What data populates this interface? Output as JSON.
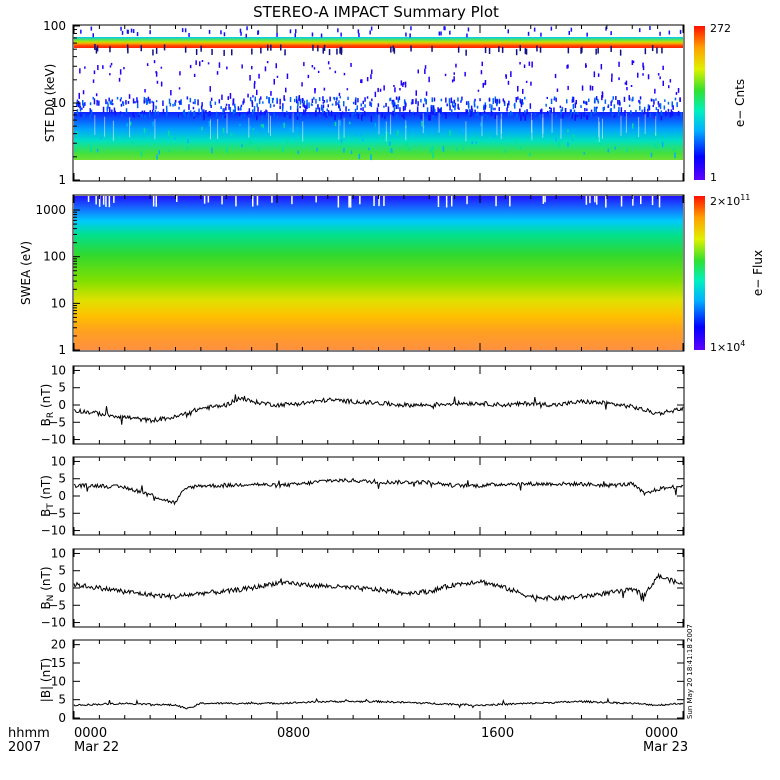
{
  "title": "STEREO-A IMPACT Summary Plot",
  "footer": {
    "time_label": "hhmm",
    "year_label": "2007",
    "stamp": "Sun May 20 18:41:18 2007"
  },
  "chart_data": [
    {
      "type": "heatmap",
      "name": "STE D0 spectrogram",
      "ylabel": "STE D0 (keV)",
      "yscale": "log",
      "ylim": [
        1,
        100
      ],
      "yticks": [
        1,
        10,
        100
      ],
      "ytick_labels": [
        "1",
        "10",
        "100"
      ],
      "colorbar": {
        "label": "e− Cnts",
        "min_label": "1",
        "max_label": "272",
        "min": 1,
        "max": 272
      },
      "description": "continuous band 2-6 keV, bright band near 55-70 keV, sparse points above"
    },
    {
      "type": "heatmap",
      "name": "SWEA spectrogram",
      "ylabel": "SWEA (eV)",
      "yscale": "log",
      "ylim": [
        1,
        2000
      ],
      "yticks": [
        1,
        10,
        100,
        1000
      ],
      "ytick_labels": [
        "1",
        "10",
        "100",
        "1000"
      ],
      "colorbar": {
        "label": "e− Flux",
        "min_label": "1×10",
        "min_exp": "4",
        "max_label": "2×10",
        "max_exp": "11",
        "min": 10000,
        "max": 200000000000
      }
    },
    {
      "type": "line",
      "ylabel_main": "B",
      "ylabel_sub": "R",
      "ylabel_unit": " (nT)",
      "ylim": [
        -11,
        11
      ],
      "yticks": [
        -10,
        -5,
        0,
        5,
        10
      ],
      "ytick_labels": [
        "−10",
        "−5",
        "0",
        "5",
        "10"
      ],
      "series": [
        {
          "x": [
            0,
            1,
            2,
            3,
            4,
            5,
            6,
            6.5,
            7,
            8,
            9,
            10,
            11,
            12,
            13,
            14,
            15,
            16,
            17,
            18,
            19,
            20,
            21,
            22,
            23,
            24
          ],
          "y": [
            -1.5,
            -2.5,
            -3.5,
            -4.5,
            -3.5,
            -1.0,
            0.0,
            2.0,
            1.0,
            0.0,
            0.5,
            1.5,
            1.0,
            0.5,
            0.0,
            0.0,
            0.5,
            0.5,
            0.0,
            0.5,
            0.0,
            1.0,
            0.5,
            -0.5,
            -2.5,
            -1.0
          ]
        }
      ]
    },
    {
      "type": "line",
      "ylabel_main": "B",
      "ylabel_sub": "T",
      "ylabel_unit": " (nT)",
      "ylim": [
        -11,
        11
      ],
      "yticks": [
        -10,
        -5,
        0,
        5,
        10
      ],
      "ytick_labels": [
        "−10",
        "−5",
        "0",
        "5",
        "10"
      ],
      "series": [
        {
          "x": [
            0,
            1,
            2,
            3,
            3.5,
            4,
            4.2,
            4.5,
            5,
            6,
            7,
            8,
            9,
            10,
            11,
            12,
            13,
            14,
            15,
            16,
            17,
            18,
            19,
            20,
            21,
            22,
            22.5,
            23,
            24
          ],
          "y": [
            3.0,
            3.0,
            2.5,
            0.5,
            -1.0,
            -2.0,
            0.5,
            2.5,
            3.0,
            3.0,
            3.5,
            3.0,
            3.5,
            4.5,
            4.5,
            4.0,
            4.0,
            4.0,
            3.0,
            3.0,
            3.5,
            3.5,
            3.5,
            3.5,
            3.0,
            3.5,
            0.5,
            2.0,
            3.0
          ]
        }
      ]
    },
    {
      "type": "line",
      "ylabel_main": "B",
      "ylabel_sub": "N",
      "ylabel_unit": " (nT)",
      "ylim": [
        -11,
        11
      ],
      "yticks": [
        -10,
        -5,
        0,
        5,
        10
      ],
      "ytick_labels": [
        "−10",
        "−5",
        "0",
        "5",
        "10"
      ],
      "series": [
        {
          "x": [
            0,
            1,
            2,
            3,
            4,
            5,
            6,
            7,
            8,
            9,
            10,
            11,
            12,
            13,
            14,
            15,
            16,
            17,
            18,
            19,
            20,
            21,
            21.5,
            22,
            22.5,
            23,
            24
          ],
          "y": [
            1.0,
            0.0,
            -1.0,
            -2.0,
            -2.5,
            -1.5,
            -1.0,
            0.0,
            1.5,
            1.0,
            0.5,
            0.0,
            -0.5,
            -1.5,
            -1.0,
            1.0,
            2.0,
            0.0,
            -2.5,
            -3.0,
            -2.5,
            -1.5,
            -1.0,
            -0.5,
            -2.0,
            3.5,
            1.0
          ]
        }
      ]
    },
    {
      "type": "line",
      "ylabel_main": "|B|",
      "ylabel_sub": "",
      "ylabel_unit": " (nT)",
      "ylim": [
        0,
        21
      ],
      "yticks": [
        0,
        5,
        10,
        15,
        20
      ],
      "ytick_labels": [
        "0",
        "5",
        "10",
        "15",
        "20"
      ],
      "series": [
        {
          "x": [
            0,
            2,
            4,
            4.5,
            5,
            6,
            8,
            10,
            12,
            14,
            16,
            18,
            20,
            22,
            23,
            24
          ],
          "y": [
            3.5,
            4.0,
            3.5,
            2.5,
            4.0,
            4.0,
            4.0,
            4.5,
            4.5,
            4.0,
            3.5,
            4.0,
            4.5,
            4.0,
            3.5,
            4.0
          ]
        }
      ]
    }
  ],
  "x_axis": {
    "ticks": [
      0,
      8,
      16,
      24
    ],
    "tick_labels": [
      "0000",
      "0800",
      "1600",
      "0000"
    ],
    "date_labels": [
      "Mar 22",
      "",
      "",
      "Mar 23"
    ]
  }
}
